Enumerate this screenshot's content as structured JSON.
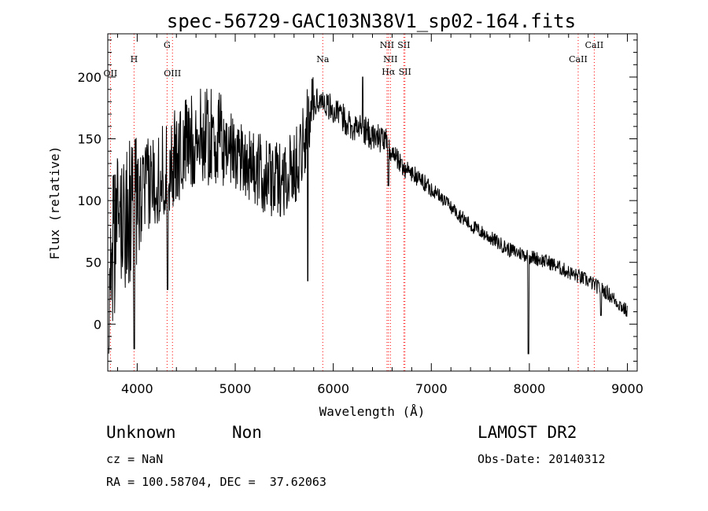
{
  "chart_data": {
    "type": "line",
    "title": "spec-56729-GAC103N38V1_sp02-164.fits",
    "xlabel": "Wavelength (Å)",
    "ylabel": "Flux (relative)",
    "xlim": [
      3700,
      9100
    ],
    "ylim": [
      -38,
      235
    ],
    "xticks": [
      4000,
      5000,
      6000,
      7000,
      8000,
      9000
    ],
    "yticks": [
      0,
      50,
      100,
      150,
      200
    ],
    "grid": false,
    "line_color": "#000000",
    "marker_color": "#ff0000",
    "anchors": [
      {
        "x": 3710,
        "y": 35
      },
      {
        "x": 3750,
        "y": 60
      },
      {
        "x": 3800,
        "y": 80
      },
      {
        "x": 3900,
        "y": 90
      },
      {
        "x": 4000,
        "y": 95
      },
      {
        "x": 4100,
        "y": 110
      },
      {
        "x": 4200,
        "y": 120
      },
      {
        "x": 4300,
        "y": 125
      },
      {
        "x": 4400,
        "y": 135
      },
      {
        "x": 4500,
        "y": 145
      },
      {
        "x": 4600,
        "y": 150
      },
      {
        "x": 4700,
        "y": 153
      },
      {
        "x": 4800,
        "y": 150
      },
      {
        "x": 4900,
        "y": 145
      },
      {
        "x": 5000,
        "y": 140
      },
      {
        "x": 5100,
        "y": 135
      },
      {
        "x": 5200,
        "y": 125
      },
      {
        "x": 5300,
        "y": 120
      },
      {
        "x": 5400,
        "y": 115
      },
      {
        "x": 5500,
        "y": 120
      },
      {
        "x": 5600,
        "y": 125
      },
      {
        "x": 5700,
        "y": 150
      },
      {
        "x": 5800,
        "y": 180
      },
      {
        "x": 5900,
        "y": 182
      },
      {
        "x": 6000,
        "y": 172
      },
      {
        "x": 6100,
        "y": 167
      },
      {
        "x": 6200,
        "y": 160
      },
      {
        "x": 6300,
        "y": 158
      },
      {
        "x": 6400,
        "y": 152
      },
      {
        "x": 6500,
        "y": 150
      },
      {
        "x": 6550,
        "y": 145
      },
      {
        "x": 6600,
        "y": 140
      },
      {
        "x": 6700,
        "y": 128
      },
      {
        "x": 6800,
        "y": 122
      },
      {
        "x": 7000,
        "y": 110
      },
      {
        "x": 7200,
        "y": 95
      },
      {
        "x": 7400,
        "y": 80
      },
      {
        "x": 7600,
        "y": 70
      },
      {
        "x": 7800,
        "y": 60
      },
      {
        "x": 8000,
        "y": 55
      },
      {
        "x": 8200,
        "y": 50
      },
      {
        "x": 8400,
        "y": 42
      },
      {
        "x": 8600,
        "y": 35
      },
      {
        "x": 8800,
        "y": 25
      },
      {
        "x": 9000,
        "y": 10
      }
    ],
    "features": [
      {
        "x": 3970,
        "y": -20
      },
      {
        "x": 4310,
        "y": 28
      },
      {
        "x": 5740,
        "y": 35
      },
      {
        "x": 6300,
        "y": 200
      },
      {
        "x": 6563,
        "y": 112
      },
      {
        "x": 7990,
        "y": -24
      },
      {
        "x": 8730,
        "y": 7
      }
    ],
    "line_markers": [
      {
        "label": "OII",
        "x": 3727,
        "row": 3
      },
      {
        "label": "H",
        "x": 3968,
        "row": 1
      },
      {
        "label": "G",
        "x": 4305,
        "row": 0
      },
      {
        "label": "OIII",
        "x": 4360,
        "row": 3
      },
      {
        "label": "Na",
        "x": 5893,
        "row": 1
      },
      {
        "label": "NII",
        "x": 6548,
        "row": 0
      },
      {
        "label": "NII",
        "x": 6583,
        "row": 1
      },
      {
        "label": "Hα",
        "x": 6563,
        "row": 2
      },
      {
        "label": "SII",
        "x": 6720,
        "row": 0
      },
      {
        "label": "SII",
        "x": 6731,
        "row": 2
      },
      {
        "label": "CaII",
        "x": 8498,
        "row": 1
      },
      {
        "label": "CaII",
        "x": 8662,
        "row": 0
      }
    ]
  },
  "info": {
    "class": "Unknown",
    "subclass": "Non",
    "survey": "LAMOST DR2",
    "redshift": "cz = NaN",
    "obs_date": "Obs-Date: 20140312",
    "coords": "RA = 100.58704, DEC =  37.62063"
  }
}
